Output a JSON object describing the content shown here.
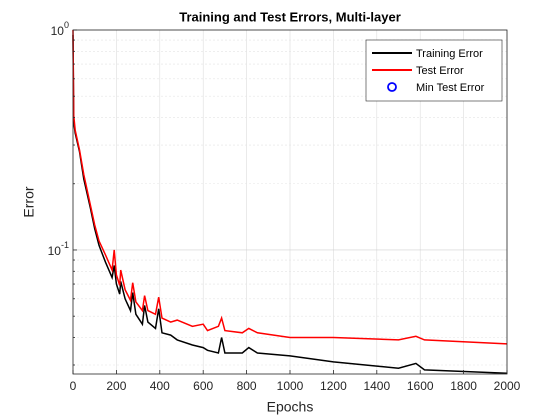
{
  "chart_data": {
    "type": "line",
    "title": "Training and Test Errors, Multi-layer",
    "xlabel": "Epochs",
    "ylabel": "Error",
    "yscale": "log",
    "grid": true,
    "legend": "northeast",
    "x": [
      0,
      3,
      10,
      30,
      50,
      80,
      100,
      120,
      150,
      180,
      190,
      200,
      215,
      220,
      240,
      265,
      275,
      290,
      320,
      330,
      345,
      380,
      395,
      410,
      450,
      480,
      550,
      600,
      620,
      670,
      685,
      700,
      780,
      810,
      850,
      1000,
      1200,
      1500,
      1580,
      1620,
      2000
    ],
    "series": [
      {
        "name": "Training Error",
        "color": "#000000",
        "values": [
          0.95,
          0.38,
          0.34,
          0.28,
          0.21,
          0.155,
          0.125,
          0.105,
          0.088,
          0.075,
          0.085,
          0.07,
          0.063,
          0.072,
          0.06,
          0.053,
          0.064,
          0.051,
          0.046,
          0.056,
          0.047,
          0.044,
          0.054,
          0.042,
          0.041,
          0.039,
          0.037,
          0.036,
          0.035,
          0.034,
          0.04,
          0.034,
          0.034,
          0.036,
          0.034,
          0.033,
          0.031,
          0.029,
          0.0305,
          0.0285,
          0.0275
        ]
      },
      {
        "name": "Test Error",
        "color": "#ff0000",
        "values": [
          1.0,
          0.41,
          0.35,
          0.285,
          0.22,
          0.16,
          0.13,
          0.11,
          0.095,
          0.081,
          0.1,
          0.077,
          0.069,
          0.081,
          0.066,
          0.059,
          0.071,
          0.058,
          0.053,
          0.062,
          0.053,
          0.051,
          0.061,
          0.049,
          0.047,
          0.048,
          0.045,
          0.046,
          0.043,
          0.045,
          0.049,
          0.043,
          0.042,
          0.044,
          0.042,
          0.04,
          0.04,
          0.039,
          0.0405,
          0.039,
          0.0374
        ]
      },
      {
        "name": "Min Test Error",
        "color": "#0000ff",
        "marker": "o",
        "x": [],
        "values": []
      }
    ],
    "xlim": [
      0,
      2000
    ],
    "xticks": [
      0,
      200,
      400,
      600,
      800,
      1000,
      1200,
      1400,
      1600,
      1800,
      2000
    ],
    "ylim": [
      0.0273,
      1
    ],
    "yticks": [
      {
        "value": 1,
        "label": "10^0"
      },
      {
        "value": 0.1,
        "label": "10^-1"
      }
    ],
    "yminorticks": [
      0.03,
      0.04,
      0.05,
      0.06,
      0.07,
      0.08,
      0.09,
      0.2,
      0.3,
      0.4,
      0.5,
      0.6,
      0.7,
      0.8,
      0.9
    ]
  }
}
